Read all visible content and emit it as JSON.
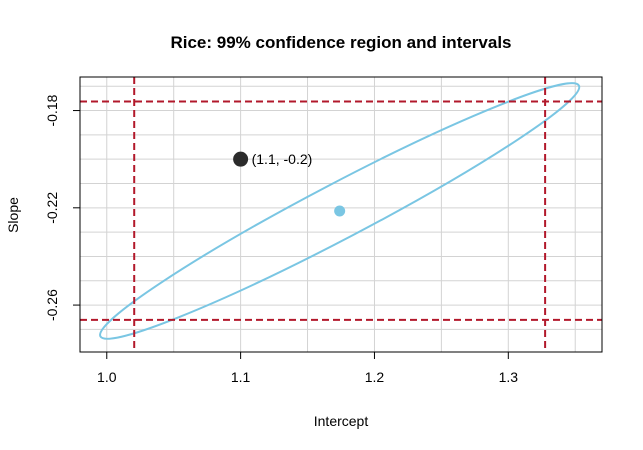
{
  "chart_data": {
    "type": "scatter",
    "title": "Rice: 99% confidence region and intervals",
    "xlabel": "Intercept",
    "ylabel": "Slope",
    "xlim": [
      0.98,
      1.37
    ],
    "ylim": [
      -0.2793,
      -0.1662
    ],
    "x_ticks": [
      1.0,
      1.1,
      1.2,
      1.3
    ],
    "x_tick_labels": [
      "1.0",
      "1.1",
      "1.2",
      "1.3"
    ],
    "y_ticks": [
      -0.26,
      -0.22,
      -0.18
    ],
    "y_tick_labels": [
      "-0.26",
      "-0.22",
      "-0.18"
    ],
    "grid": true,
    "colors": {
      "ellipse": "#7ac6e3",
      "estimate": "#7ac6e3",
      "interval_lines": "#b2182b",
      "test_point": "#2b2b2b",
      "grid": "#d3d3d3"
    },
    "confidence_region": {
      "center": [
        1.174,
        -0.2213
      ],
      "x_range": [
        0.995,
        1.353
      ],
      "y_range": [
        -0.2738,
        -0.1687
      ],
      "level": "99%"
    },
    "intervals": {
      "intercept": [
        1.0205,
        1.3275
      ],
      "slope": [
        -0.2661,
        -0.1763
      ]
    },
    "points": [
      {
        "x": 1.174,
        "y": -0.2213,
        "role": "estimate",
        "label": ""
      },
      {
        "x": 1.1,
        "y": -0.2,
        "role": "test",
        "label": "(1.1, -0.2)"
      }
    ]
  }
}
